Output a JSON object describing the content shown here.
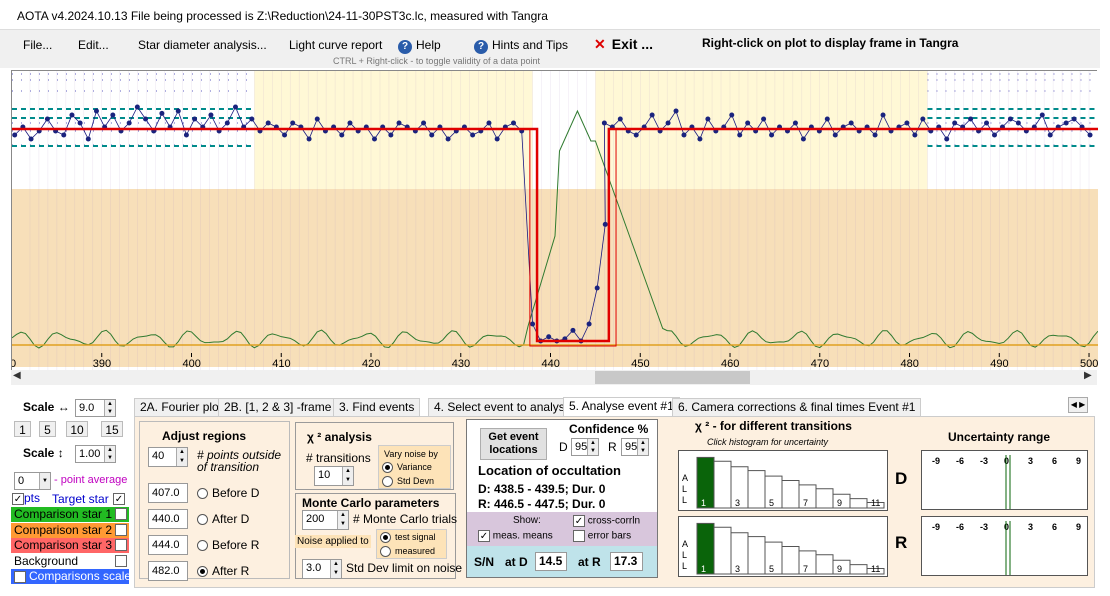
{
  "window": {
    "title": "AOTA v4.2024.10.13    File being processed is Z:\\Reduction\\24-11-30PST3c.lc, measured with Tangra"
  },
  "menu": {
    "file": "File...",
    "edit": "Edit...",
    "star_diameter": "Star diameter analysis...",
    "light_curve": "Light curve report",
    "help": "Help",
    "hints": "Hints and Tips",
    "exit": "Exit ...",
    "hint_ctrl": "CTRL + Right-click  -  to toggle validity of a data point",
    "hint_right": "Right-click on plot to display frame in Tangra"
  },
  "plot": {
    "ticks": [
      {
        "v": 390,
        "label": "390"
      },
      {
        "v": 400,
        "label": "400"
      },
      {
        "v": 410,
        "label": "410"
      },
      {
        "v": 420,
        "label": "420"
      },
      {
        "v": 430,
        "label": "430"
      },
      {
        "v": 440,
        "label": "440"
      },
      {
        "v": 450,
        "label": "450"
      },
      {
        "v": 460,
        "label": "460"
      },
      {
        "v": 470,
        "label": "470"
      },
      {
        "v": 480,
        "label": "480"
      },
      {
        "v": 490,
        "label": "490"
      },
      {
        "v": 500,
        "label": "500"
      }
    ],
    "first_tick": "0",
    "xlim": [
      380,
      501
    ],
    "points_pre": [
      0.55,
      0.45,
      0.6,
      0.5,
      0.35,
      0.5,
      0.55,
      0.3,
      0.4,
      0.6,
      0.25,
      0.45,
      0.3,
      0.5,
      0.4,
      0.2,
      0.35,
      0.5,
      0.28,
      0.45,
      0.25,
      0.55,
      0.35,
      0.45,
      0.3,
      0.5,
      0.4,
      0.2,
      0.45,
      0.35,
      0.5,
      0.4,
      0.45,
      0.55,
      0.4,
      0.45,
      0.6,
      0.35,
      0.5,
      0.45,
      0.55,
      0.4,
      0.5,
      0.45,
      0.6,
      0.45,
      0.55,
      0.4,
      0.45,
      0.5,
      0.4,
      0.55,
      0.45,
      0.6,
      0.5,
      0.45,
      0.55,
      0.5,
      0.4,
      0.6,
      0.45,
      0.4,
      0.5
    ],
    "points_dip": [
      0.92,
      1.0,
      0.98,
      1.0,
      0.99,
      0.95,
      1.0,
      0.92,
      0.75,
      0.45
    ],
    "points_post": [
      0.4,
      0.45,
      0.35,
      0.5,
      0.55,
      0.45,
      0.3,
      0.5,
      0.4,
      0.25,
      0.55,
      0.45,
      0.6,
      0.35,
      0.5,
      0.45,
      0.3,
      0.55,
      0.4,
      0.5,
      0.35,
      0.55,
      0.45,
      0.5,
      0.4,
      0.6,
      0.45,
      0.5,
      0.35,
      0.55,
      0.45,
      0.4,
      0.5,
      0.45,
      0.55,
      0.3,
      0.5,
      0.45,
      0.4,
      0.55,
      0.35,
      0.5,
      0.45,
      0.6,
      0.4,
      0.45,
      0.35,
      0.5,
      0.4,
      0.55,
      0.45,
      0.35,
      0.4,
      0.5,
      0.45,
      0.3,
      0.55,
      0.45,
      0.4,
      0.35,
      0.45,
      0.55
    ]
  },
  "scale": {
    "h_label": "Scale ↔",
    "h_value": "9.0",
    "btns": [
      "1",
      "5",
      "10",
      "15"
    ],
    "v_label": "Scale ↕",
    "v_value": "1.00",
    "avg_value": "0",
    "avg_label": "- point average",
    "pts_label": "pts",
    "target_label": "Target star",
    "legend": [
      {
        "name": "Comparison star 1",
        "color": "#22bb22",
        "text": "#000"
      },
      {
        "name": "Comparison star 2",
        "color": "#ff9933",
        "text": "#000"
      },
      {
        "name": "Comparison star 3",
        "color": "#ff6666",
        "text": "#000"
      },
      {
        "name": "Background",
        "color": "#ffffff",
        "text": "#000"
      },
      {
        "name": "Comparisons scaled",
        "color": "#3366ff",
        "text": "#fff"
      }
    ]
  },
  "tabs": [
    {
      "label": "2A. Fourier plot"
    },
    {
      "label": "2B. [1, 2 & 3] -frame test"
    },
    {
      "label": "3. Find events"
    },
    {
      "label": "4. Select event to analyse"
    },
    {
      "label": "5. Analyse event #1"
    },
    {
      "label": "6. Camera corrections & final times Event #1"
    }
  ],
  "adjust": {
    "title": "Adjust regions",
    "points_value": "40",
    "points_label": "# points outside of transition",
    "options": [
      {
        "value": "407.0",
        "label": "Before D",
        "checked": false
      },
      {
        "value": "440.0",
        "label": "After D",
        "checked": false
      },
      {
        "value": "444.0",
        "label": "Before R",
        "checked": false
      },
      {
        "value": "482.0",
        "label": "After R",
        "checked": true
      }
    ]
  },
  "chi2": {
    "title": "χ ² analysis",
    "transitions_label": "# transitions",
    "transitions_value": "10",
    "vary_title": "Vary noise by",
    "variance": "Variance",
    "stddev": "Std Devn"
  },
  "monte": {
    "title": "Monte Carlo parameters",
    "trials_value": "200",
    "trials_label": "# Monte Carlo trials",
    "noise_label": "Noise applied to",
    "test_signal": "test signal",
    "measured": "measured",
    "limit_value": "3.0",
    "limit_label": "Std Dev limit on noise"
  },
  "event": {
    "get_btn": "Get event locations",
    "conf_title": "Confidence %",
    "d_label": "D",
    "d_value": "95",
    "r_label": "R",
    "r_value": "95",
    "loc_title": "Location of occultation",
    "d_text": "D: 438.5 - 439.5; Dur. 0",
    "r_text": "R: 446.5 - 447.5; Dur. 0",
    "show_label": "Show:",
    "cross_corr": "cross-corrln",
    "meas_means": "meas. means",
    "error_bars": "error bars",
    "sn_label": "S/N",
    "atd_label": "at D",
    "atd_value": "14.5",
    "atr_label": "at R",
    "atr_value": "17.3"
  },
  "chi_charts": {
    "title": "χ ² - for different transitions",
    "subtitle": "Click histogram for uncertainty",
    "all_label": [
      "A",
      "L",
      "L"
    ],
    "bars": [
      0.92,
      0.85,
      0.75,
      0.68,
      0.58,
      0.5,
      0.42,
      0.35,
      0.25,
      0.17,
      0.1
    ],
    "xlabels": [
      "1",
      "",
      "3",
      "",
      "5",
      "",
      "7",
      "",
      "9",
      "",
      "11"
    ],
    "d": "D",
    "r": "R"
  },
  "uncert": {
    "title": "Uncertainty range",
    "ticks": [
      "-9",
      "-6",
      "-3",
      "0",
      "3",
      "6",
      "9"
    ]
  },
  "colors": {
    "accent": "#1a237e",
    "fit": "#e00000"
  }
}
